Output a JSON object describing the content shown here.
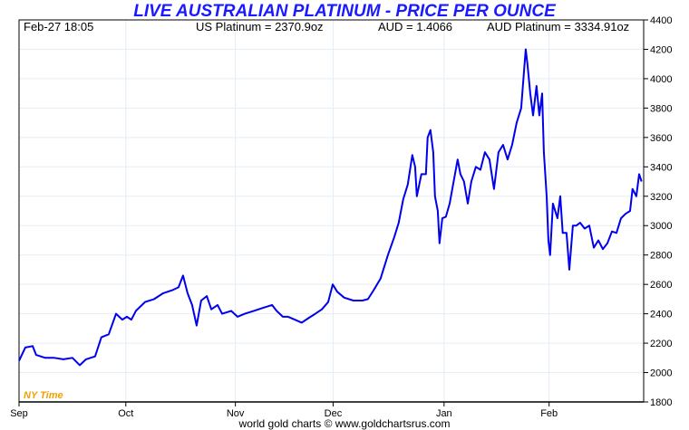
{
  "chart_data": {
    "type": "line",
    "title": "LIVE AUSTRALIAN PLATINUM - PRICE PER OUNCE",
    "header": {
      "datetime": "Feb-27  18:05",
      "us_price": "US Platinum = 2370.9oz",
      "aud_rate": "AUD = 1.4066",
      "aud_price": "AUD Platinum = 3334.91oz"
    },
    "time_label": "NY Time",
    "footer": "world gold charts © www.goldchartsrus.com",
    "xlabel": "",
    "ylabel": "",
    "ylim": [
      1800,
      4400
    ],
    "xlim": [
      0,
      179
    ],
    "x_units": "days since Sep 1",
    "y_ticks": [
      "1800",
      "2000",
      "2200",
      "2400",
      "2600",
      "2800",
      "3000",
      "3200",
      "3400",
      "3600",
      "3800",
      "4000",
      "4200",
      "4400"
    ],
    "x_ticks": [
      {
        "label": "Sep",
        "day": 0
      },
      {
        "label": "Oct",
        "day": 30.6
      },
      {
        "label": "Nov",
        "day": 62
      },
      {
        "label": "Dec",
        "day": 90
      },
      {
        "label": "Jan",
        "day": 121.8
      },
      {
        "label": "Feb",
        "day": 151.9
      }
    ],
    "grid": true,
    "line_color": "#0000ee",
    "series": [
      {
        "name": "AUD Platinum",
        "points": [
          [
            0,
            2080
          ],
          [
            1.8,
            2170
          ],
          [
            3.9,
            2180
          ],
          [
            4.9,
            2120
          ],
          [
            7.5,
            2100
          ],
          [
            10.1,
            2100
          ],
          [
            12.7,
            2090
          ],
          [
            15.3,
            2100
          ],
          [
            17.4,
            2050
          ],
          [
            19.2,
            2090
          ],
          [
            21.8,
            2110
          ],
          [
            23.6,
            2240
          ],
          [
            25.7,
            2260
          ],
          [
            27.8,
            2400
          ],
          [
            29.6,
            2360
          ],
          [
            30.9,
            2380
          ],
          [
            32.2,
            2360
          ],
          [
            33.5,
            2420
          ],
          [
            36.1,
            2480
          ],
          [
            38.7,
            2500
          ],
          [
            41.3,
            2540
          ],
          [
            43.9,
            2560
          ],
          [
            45.7,
            2580
          ],
          [
            47,
            2660
          ],
          [
            48.3,
            2540
          ],
          [
            49.6,
            2460
          ],
          [
            50.9,
            2320
          ],
          [
            52.2,
            2490
          ],
          [
            53.8,
            2520
          ],
          [
            55.1,
            2430
          ],
          [
            56.9,
            2460
          ],
          [
            58.2,
            2400
          ],
          [
            60.8,
            2420
          ],
          [
            62.6,
            2380
          ],
          [
            64.7,
            2400
          ],
          [
            67.3,
            2420
          ],
          [
            69.9,
            2440
          ],
          [
            72.5,
            2460
          ],
          [
            73.8,
            2420
          ],
          [
            75.6,
            2380
          ],
          [
            77.1,
            2380
          ],
          [
            79,
            2360
          ],
          [
            81,
            2340
          ],
          [
            82.9,
            2370
          ],
          [
            84.9,
            2400
          ],
          [
            86.8,
            2430
          ],
          [
            88.6,
            2480
          ],
          [
            89.9,
            2600
          ],
          [
            91.2,
            2550
          ],
          [
            93.2,
            2510
          ],
          [
            95.8,
            2490
          ],
          [
            98.4,
            2490
          ],
          [
            100,
            2500
          ],
          [
            101.6,
            2560
          ],
          [
            103.6,
            2640
          ],
          [
            105.7,
            2800
          ],
          [
            107.5,
            2920
          ],
          [
            108.8,
            3020
          ],
          [
            110.1,
            3180
          ],
          [
            111.4,
            3280
          ],
          [
            112.7,
            3480
          ],
          [
            113.5,
            3400
          ],
          [
            114,
            3200
          ],
          [
            115.3,
            3350
          ],
          [
            116.6,
            3350
          ],
          [
            117.1,
            3600
          ],
          [
            117.9,
            3650
          ],
          [
            118.7,
            3500
          ],
          [
            119.2,
            3200
          ],
          [
            120,
            3100
          ],
          [
            120.5,
            2880
          ],
          [
            121.3,
            3050
          ],
          [
            122.3,
            3060
          ],
          [
            123.4,
            3150
          ],
          [
            124.4,
            3280
          ],
          [
            125.7,
            3450
          ],
          [
            126.5,
            3350
          ],
          [
            127.5,
            3300
          ],
          [
            128.6,
            3150
          ],
          [
            129.6,
            3300
          ],
          [
            130.9,
            3400
          ],
          [
            132.2,
            3380
          ],
          [
            133.5,
            3500
          ],
          [
            134.8,
            3450
          ],
          [
            136.1,
            3250
          ],
          [
            137.4,
            3500
          ],
          [
            138.7,
            3550
          ],
          [
            140,
            3450
          ],
          [
            141.3,
            3550
          ],
          [
            142.6,
            3700
          ],
          [
            143.9,
            3800
          ],
          [
            144.7,
            4050
          ],
          [
            145.2,
            4200
          ],
          [
            145.7,
            4100
          ],
          [
            146.5,
            3900
          ],
          [
            147.3,
            3750
          ],
          [
            148.3,
            3950
          ],
          [
            149.1,
            3750
          ],
          [
            149.9,
            3900
          ],
          [
            150.4,
            3500
          ],
          [
            151.2,
            3200
          ],
          [
            151.7,
            2900
          ],
          [
            152.2,
            2800
          ],
          [
            153,
            3150
          ],
          [
            154.3,
            3050
          ],
          [
            155.1,
            3200
          ],
          [
            155.8,
            2950
          ],
          [
            156.9,
            2950
          ],
          [
            157.7,
            2700
          ],
          [
            158.7,
            3000
          ],
          [
            159.7,
            3000
          ],
          [
            160.8,
            3020
          ],
          [
            162.1,
            2980
          ],
          [
            163.4,
            3000
          ],
          [
            164.7,
            2850
          ],
          [
            166,
            2900
          ],
          [
            167.3,
            2840
          ],
          [
            168.6,
            2880
          ],
          [
            169.9,
            2960
          ],
          [
            171.2,
            2950
          ],
          [
            172.5,
            3050
          ],
          [
            173.8,
            3080
          ],
          [
            175.1,
            3100
          ],
          [
            175.8,
            3250
          ],
          [
            176.9,
            3200
          ],
          [
            177.7,
            3350
          ],
          [
            178.4,
            3300
          ]
        ]
      }
    ]
  }
}
